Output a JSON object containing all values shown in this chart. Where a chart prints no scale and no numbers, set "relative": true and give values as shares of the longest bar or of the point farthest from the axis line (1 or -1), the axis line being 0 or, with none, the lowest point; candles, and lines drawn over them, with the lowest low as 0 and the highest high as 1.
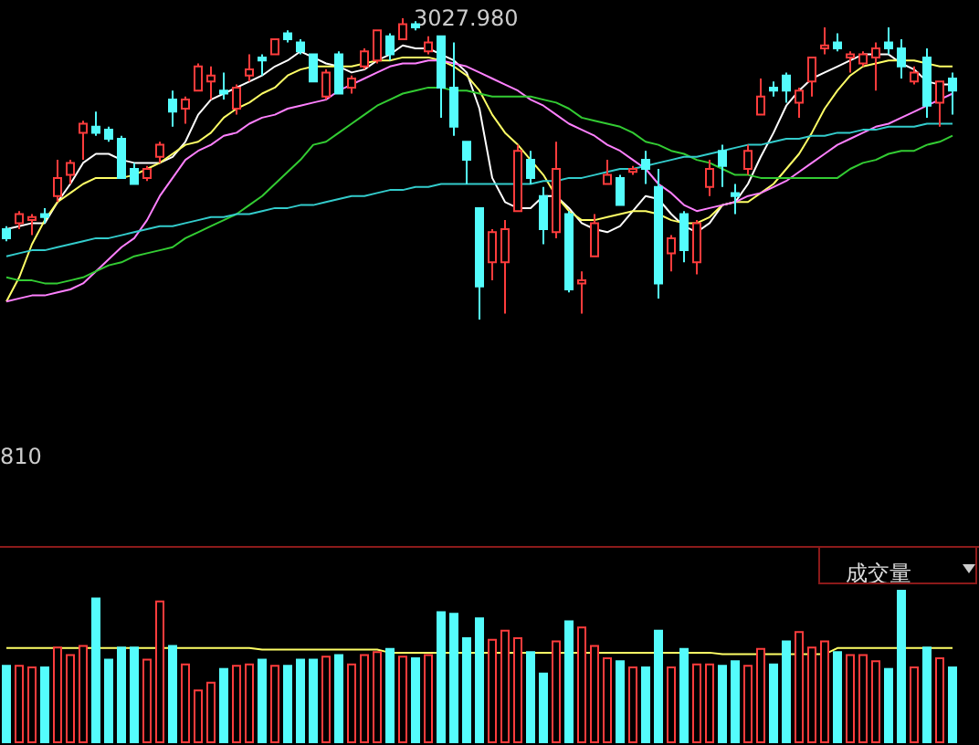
{
  "chart_data": [
    {
      "type": "candlestick",
      "relative": true,
      "annotations": [
        "3027.980",
        "810"
      ],
      "categories": [
        null,
        null,
        null,
        null,
        null,
        null,
        null,
        null,
        null,
        null,
        null,
        null,
        null,
        null,
        null,
        null,
        null,
        null,
        null,
        null,
        null,
        null,
        null,
        null,
        null,
        null,
        null,
        null,
        null,
        null,
        null,
        null,
        null,
        null,
        null,
        null,
        null,
        null,
        null,
        null,
        null,
        null,
        null,
        null,
        null,
        null,
        null,
        null,
        null,
        null,
        null,
        null,
        null,
        null,
        null,
        null,
        null,
        null,
        null,
        null,
        null,
        null,
        null,
        null,
        null,
        null,
        null,
        null,
        null,
        null,
        null,
        null,
        null,
        null,
        null
      ],
      "series": [
        {
          "type": "candlestick",
          "ohlc": [
            [
              0.3,
              0.31,
              0.26,
              0.27
            ],
            [
              0.32,
              0.36,
              0.3,
              0.35
            ],
            [
              0.33,
              0.35,
              0.28,
              0.34
            ],
            [
              0.35,
              0.37,
              0.32,
              0.34
            ],
            [
              0.41,
              0.53,
              0.39,
              0.47
            ],
            [
              0.48,
              0.53,
              0.45,
              0.52
            ],
            [
              0.62,
              0.66,
              0.53,
              0.65
            ],
            [
              0.64,
              0.69,
              0.61,
              0.62
            ],
            [
              0.63,
              0.64,
              0.59,
              0.6
            ],
            [
              0.6,
              0.61,
              0.47,
              0.47
            ],
            [
              0.5,
              0.52,
              0.45,
              0.45
            ],
            [
              0.47,
              0.51,
              0.46,
              0.5
            ],
            [
              0.54,
              0.59,
              0.52,
              0.58
            ],
            [
              0.73,
              0.76,
              0.64,
              0.69
            ],
            [
              0.7,
              0.74,
              0.65,
              0.73
            ],
            [
              0.76,
              0.85,
              0.76,
              0.84
            ],
            [
              0.79,
              0.84,
              0.73,
              0.81
            ],
            [
              0.76,
              0.82,
              0.73,
              0.75
            ],
            [
              0.7,
              0.78,
              0.68,
              0.77
            ],
            [
              0.81,
              0.88,
              0.79,
              0.83
            ],
            [
              0.87,
              0.88,
              0.81,
              0.86
            ],
            [
              0.88,
              0.93,
              0.88,
              0.93
            ],
            [
              0.95,
              0.96,
              0.92,
              0.93
            ],
            [
              0.92,
              0.93,
              0.88,
              0.89
            ],
            [
              0.88,
              0.88,
              0.79,
              0.79
            ],
            [
              0.74,
              0.83,
              0.73,
              0.82
            ],
            [
              0.88,
              0.89,
              0.75,
              0.75
            ],
            [
              0.77,
              0.81,
              0.75,
              0.8
            ],
            [
              0.84,
              0.9,
              0.83,
              0.89
            ],
            [
              0.86,
              0.96,
              0.85,
              0.96
            ],
            [
              0.94,
              0.95,
              0.86,
              0.88
            ],
            [
              0.93,
              1.0,
              0.93,
              0.98
            ],
            [
              0.98,
              0.99,
              0.96,
              0.97
            ],
            [
              0.89,
              0.94,
              0.88,
              0.92
            ],
            [
              0.94,
              0.94,
              0.67,
              0.77
            ],
            [
              0.77,
              0.92,
              0.61,
              0.64
            ],
            [
              0.59,
              0.59,
              0.45,
              0.53
            ],
            [
              0.37,
              0.37,
              0,
              0.11
            ],
            [
              0.19,
              0.3,
              0.13,
              0.29
            ],
            [
              0.19,
              0.33,
              0.02,
              0.3
            ],
            [
              0.36,
              0.58,
              0.36,
              0.56
            ],
            [
              0.53,
              0.56,
              0.45,
              0.47
            ],
            [
              0.41,
              0.44,
              0.25,
              0.3
            ],
            [
              0.29,
              0.59,
              0.27,
              0.5
            ],
            [
              0.35,
              0.36,
              0.09,
              0.1
            ],
            [
              0.12,
              0.16,
              0.02,
              0.13
            ],
            [
              0.21,
              0.35,
              0.21,
              0.32
            ],
            [
              0.45,
              0.53,
              0.45,
              0.48
            ],
            [
              0.47,
              0.48,
              0.38,
              0.38
            ],
            [
              0.49,
              0.51,
              0.48,
              0.5
            ],
            [
              0.53,
              0.56,
              0.45,
              0.5
            ],
            [
              0.44,
              0.5,
              0.07,
              0.12
            ],
            [
              0.22,
              0.28,
              0.16,
              0.27
            ],
            [
              0.35,
              0.36,
              0.19,
              0.23
            ],
            [
              0.19,
              0.33,
              0.15,
              0.32
            ],
            [
              0.44,
              0.53,
              0.41,
              0.5
            ],
            [
              0.56,
              0.58,
              0.44,
              0.51
            ],
            [
              0.42,
              0.45,
              0.35,
              0.41
            ],
            [
              0.5,
              0.58,
              0.48,
              0.56
            ],
            [
              0.68,
              0.8,
              0.68,
              0.74
            ],
            [
              0.77,
              0.79,
              0.74,
              0.76
            ],
            [
              0.81,
              0.82,
              0.72,
              0.76
            ],
            [
              0.72,
              0.77,
              0.67,
              0.76
            ],
            [
              0.79,
              0.87,
              0.74,
              0.87
            ],
            [
              0.9,
              0.97,
              0.88,
              0.91
            ],
            [
              0.92,
              0.95,
              0.89,
              0.9
            ],
            [
              0.87,
              0.89,
              0.82,
              0.88
            ],
            [
              0.85,
              0.89,
              0.84,
              0.88
            ],
            [
              0.87,
              0.92,
              0.76,
              0.9
            ],
            [
              0.92,
              0.97,
              0.88,
              0.9
            ],
            [
              0.9,
              0.93,
              0.8,
              0.84
            ],
            [
              0.79,
              0.84,
              0.78,
              0.82
            ],
            [
              0.87,
              0.9,
              0.67,
              0.71
            ],
            [
              0.72,
              0.79,
              0.64,
              0.79
            ],
            [
              0.8,
              0.82,
              0.68,
              0.76
            ]
          ],
          "colors": [
            "#54fcfc",
            "#ff3c3c",
            "#ff3c3c",
            "#54fcfc",
            "#ff3c3c",
            "#ff3c3c",
            "#ff3c3c",
            "#54fcfc",
            "#54fcfc",
            "#54fcfc",
            "#54fcfc",
            "#ff3c3c",
            "#ff3c3c",
            "#54fcfc",
            "#ff3c3c",
            "#ff3c3c",
            "#ff3c3c",
            "#54fcfc",
            "#ff3c3c",
            "#ff3c3c",
            "#54fcfc",
            "#ff3c3c",
            "#54fcfc",
            "#54fcfc",
            "#54fcfc",
            "#ff3c3c",
            "#54fcfc",
            "#ff3c3c",
            "#ff3c3c",
            "#ff3c3c",
            "#54fcfc",
            "#ff3c3c",
            "#54fcfc",
            "#ff3c3c",
            "#54fcfc",
            "#54fcfc",
            "#54fcfc",
            "#54fcfc",
            "#ff3c3c",
            "#ff3c3c",
            "#ff3c3c",
            "#54fcfc",
            "#54fcfc",
            "#ff3c3c",
            "#54fcfc",
            "#ff3c3c",
            "#ff3c3c",
            "#ff3c3c",
            "#54fcfc",
            "#ff3c3c",
            "#54fcfc",
            "#54fcfc",
            "#ff3c3c",
            "#54fcfc",
            "#ff3c3c",
            "#ff3c3c",
            "#54fcfc",
            "#54fcfc",
            "#ff3c3c",
            "#ff3c3c",
            "#54fcfc",
            "#54fcfc",
            "#ff3c3c",
            "#ff3c3c",
            "#ff3c3c",
            "#54fcfc",
            "#ff3c3c",
            "#ff3c3c",
            "#ff3c3c",
            "#54fcfc",
            "#54fcfc",
            "#ff3c3c",
            "#54fcfc",
            "#ff3c3c",
            "#54fcfc"
          ]
        },
        {
          "type": "line",
          "color": "#ffffff",
          "values": [
            0.3,
            0.31,
            0.32,
            0.32,
            0.39,
            0.45,
            0.52,
            0.55,
            0.55,
            0.53,
            0.52,
            0.52,
            0.52,
            0.54,
            0.59,
            0.68,
            0.73,
            0.75,
            0.77,
            0.79,
            0.81,
            0.84,
            0.86,
            0.89,
            0.87,
            0.85,
            0.84,
            0.82,
            0.83,
            0.86,
            0.88,
            0.91,
            0.9,
            0.9,
            0.88,
            0.86,
            0.82,
            0.7,
            0.47,
            0.39,
            0.37,
            0.37,
            0.41,
            0.41,
            0.37,
            0.32,
            0.3,
            0.29,
            0.31,
            0.36,
            0.41,
            0.4,
            0.35,
            0.31,
            0.29,
            0.32,
            0.38,
            0.39,
            0.45,
            0.54,
            0.62,
            0.71,
            0.76,
            0.8,
            0.82,
            0.84,
            0.86,
            0.88,
            0.88,
            0.88,
            0.85,
            0.83,
            0.79,
            0.78,
            0.78
          ]
        },
        {
          "type": "line",
          "color": "#ffff66",
          "values": [
            0.06,
            0.14,
            0.25,
            0.33,
            0.39,
            0.42,
            0.45,
            0.47,
            0.47,
            0.47,
            0.48,
            0.5,
            0.52,
            0.55,
            0.58,
            0.59,
            0.62,
            0.67,
            0.7,
            0.72,
            0.75,
            0.77,
            0.81,
            0.83,
            0.84,
            0.84,
            0.84,
            0.84,
            0.85,
            0.86,
            0.86,
            0.87,
            0.87,
            0.87,
            0.86,
            0.84,
            0.81,
            0.76,
            0.68,
            0.62,
            0.58,
            0.53,
            0.48,
            0.41,
            0.36,
            0.33,
            0.33,
            0.34,
            0.35,
            0.36,
            0.36,
            0.35,
            0.33,
            0.32,
            0.32,
            0.34,
            0.38,
            0.39,
            0.39,
            0.42,
            0.45,
            0.5,
            0.55,
            0.62,
            0.7,
            0.76,
            0.81,
            0.84,
            0.85,
            0.86,
            0.86,
            0.86,
            0.85,
            0.84,
            0.84
          ]
        },
        {
          "type": "line",
          "color": "#ff80ff",
          "values": [
            0.06,
            0.07,
            0.08,
            0.08,
            0.09,
            0.1,
            0.12,
            0.16,
            0.2,
            0.24,
            0.27,
            0.33,
            0.41,
            0.47,
            0.53,
            0.56,
            0.58,
            0.61,
            0.62,
            0.65,
            0.67,
            0.68,
            0.7,
            0.71,
            0.72,
            0.73,
            0.76,
            0.78,
            0.8,
            0.82,
            0.84,
            0.85,
            0.85,
            0.86,
            0.86,
            0.85,
            0.84,
            0.82,
            0.8,
            0.78,
            0.76,
            0.73,
            0.71,
            0.68,
            0.65,
            0.63,
            0.61,
            0.58,
            0.56,
            0.53,
            0.5,
            0.45,
            0.42,
            0.38,
            0.36,
            0.37,
            0.38,
            0.39,
            0.41,
            0.42,
            0.44,
            0.46,
            0.49,
            0.52,
            0.55,
            0.58,
            0.6,
            0.62,
            0.64,
            0.65,
            0.67,
            0.69,
            0.71,
            0.73,
            0.75
          ]
        },
        {
          "type": "line",
          "color": "#33cc33",
          "values": [
            0.14,
            0.13,
            0.13,
            0.12,
            0.12,
            0.13,
            0.14,
            0.16,
            0.18,
            0.19,
            0.21,
            0.22,
            0.23,
            0.24,
            0.27,
            0.29,
            0.31,
            0.33,
            0.35,
            0.38,
            0.41,
            0.45,
            0.49,
            0.53,
            0.58,
            0.59,
            0.62,
            0.65,
            0.68,
            0.71,
            0.73,
            0.75,
            0.76,
            0.77,
            0.77,
            0.76,
            0.76,
            0.75,
            0.74,
            0.74,
            0.74,
            0.74,
            0.73,
            0.72,
            0.7,
            0.67,
            0.66,
            0.65,
            0.64,
            0.62,
            0.59,
            0.58,
            0.56,
            0.55,
            0.53,
            0.52,
            0.5,
            0.48,
            0.48,
            0.47,
            0.47,
            0.47,
            0.47,
            0.47,
            0.47,
            0.47,
            0.5,
            0.52,
            0.53,
            0.55,
            0.56,
            0.56,
            0.58,
            0.59,
            0.61
          ]
        },
        {
          "type": "line",
          "color": "#33cccc",
          "values": [
            0.21,
            0.22,
            0.23,
            0.23,
            0.24,
            0.25,
            0.26,
            0.27,
            0.27,
            0.28,
            0.29,
            0.3,
            0.31,
            0.31,
            0.32,
            0.33,
            0.34,
            0.34,
            0.35,
            0.35,
            0.36,
            0.37,
            0.37,
            0.38,
            0.38,
            0.39,
            0.4,
            0.41,
            0.41,
            0.42,
            0.43,
            0.43,
            0.44,
            0.44,
            0.45,
            0.45,
            0.45,
            0.45,
            0.45,
            0.45,
            0.45,
            0.45,
            0.46,
            0.46,
            0.47,
            0.47,
            0.48,
            0.49,
            0.5,
            0.5,
            0.51,
            0.52,
            0.53,
            0.54,
            0.54,
            0.55,
            0.56,
            0.57,
            0.58,
            0.58,
            0.59,
            0.6,
            0.6,
            0.61,
            0.61,
            0.62,
            0.62,
            0.63,
            0.63,
            0.64,
            0.64,
            0.64,
            0.65,
            0.65,
            0.65
          ]
        }
      ]
    },
    {
      "type": "bar",
      "relative": true,
      "title": "成交量",
      "categories": [
        null,
        null,
        null,
        null,
        null,
        null,
        null,
        null,
        null,
        null,
        null,
        null,
        null,
        null,
        null,
        null,
        null,
        null,
        null,
        null,
        null,
        null,
        null,
        null,
        null,
        null,
        null,
        null,
        null,
        null,
        null,
        null,
        null,
        null,
        null,
        null,
        null,
        null,
        null,
        null,
        null,
        null,
        null,
        null,
        null,
        null,
        null,
        null,
        null,
        null,
        null,
        null,
        null,
        null,
        null,
        null,
        null,
        null,
        null,
        null,
        null,
        null,
        null,
        null,
        null,
        null,
        null,
        null,
        null,
        null,
        null,
        null,
        null,
        null,
        null
      ],
      "series": [
        {
          "type": "bar",
          "values": [
            0.51,
            0.51,
            0.5,
            0.5,
            0.63,
            0.58,
            0.64,
            0.95,
            0.55,
            0.63,
            0.63,
            0.55,
            0.93,
            0.64,
            0.52,
            0.35,
            0.4,
            0.49,
            0.51,
            0.52,
            0.55,
            0.51,
            0.51,
            0.55,
            0.55,
            0.57,
            0.58,
            0.52,
            0.58,
            0.6,
            0.62,
            0.57,
            0.56,
            0.58,
            0.86,
            0.85,
            0.69,
            0.82,
            0.68,
            0.74,
            0.69,
            0.6,
            0.46,
            0.67,
            0.8,
            0.76,
            0.64,
            0.56,
            0.54,
            0.5,
            0.5,
            0.74,
            0.5,
            0.62,
            0.52,
            0.52,
            0.51,
            0.54,
            0.51,
            0.62,
            0.52,
            0.67,
            0.73,
            0.63,
            0.67,
            0.6,
            0.58,
            0.58,
            0.54,
            0.49,
            1,
            0.5,
            0.63,
            0.56,
            0.5
          ],
          "colors": [
            "#54fcfc",
            "#ff3c3c",
            "#ff3c3c",
            "#54fcfc",
            "#ff3c3c",
            "#ff3c3c",
            "#ff3c3c",
            "#54fcfc",
            "#54fcfc",
            "#54fcfc",
            "#54fcfc",
            "#ff3c3c",
            "#ff3c3c",
            "#54fcfc",
            "#ff3c3c",
            "#ff3c3c",
            "#ff3c3c",
            "#54fcfc",
            "#ff3c3c",
            "#ff3c3c",
            "#54fcfc",
            "#ff3c3c",
            "#54fcfc",
            "#54fcfc",
            "#54fcfc",
            "#ff3c3c",
            "#54fcfc",
            "#ff3c3c",
            "#ff3c3c",
            "#ff3c3c",
            "#54fcfc",
            "#ff3c3c",
            "#54fcfc",
            "#ff3c3c",
            "#54fcfc",
            "#54fcfc",
            "#54fcfc",
            "#54fcfc",
            "#ff3c3c",
            "#ff3c3c",
            "#ff3c3c",
            "#54fcfc",
            "#54fcfc",
            "#ff3c3c",
            "#54fcfc",
            "#ff3c3c",
            "#ff3c3c",
            "#ff3c3c",
            "#54fcfc",
            "#ff3c3c",
            "#54fcfc",
            "#54fcfc",
            "#ff3c3c",
            "#54fcfc",
            "#ff3c3c",
            "#ff3c3c",
            "#54fcfc",
            "#54fcfc",
            "#ff3c3c",
            "#ff3c3c",
            "#54fcfc",
            "#54fcfc",
            "#ff3c3c",
            "#ff3c3c",
            "#ff3c3c",
            "#54fcfc",
            "#ff3c3c",
            "#ff3c3c",
            "#ff3c3c",
            "#54fcfc",
            "#54fcfc",
            "#ff3c3c",
            "#54fcfc",
            "#ff3c3c",
            "#54fcfc"
          ]
        },
        {
          "type": "line",
          "color": "#ffff66",
          "values": [
            0.62,
            0.62,
            0.62,
            0.62,
            0.62,
            0.62,
            0.62,
            0.62,
            0.62,
            0.62,
            0.62,
            0.62,
            0.62,
            0.62,
            0.62,
            0.62,
            0.62,
            0.62,
            0.62,
            0.62,
            0.61,
            0.61,
            0.61,
            0.61,
            0.61,
            0.61,
            0.61,
            0.61,
            0.61,
            0.61,
            0.59,
            0.59,
            0.59,
            0.59,
            0.59,
            0.59,
            0.59,
            0.59,
            0.59,
            0.59,
            0.59,
            0.59,
            0.59,
            0.59,
            0.59,
            0.59,
            0.59,
            0.59,
            0.59,
            0.59,
            0.59,
            0.59,
            0.59,
            0.59,
            0.59,
            0.59,
            0.58,
            0.58,
            0.58,
            0.58,
            0.58,
            0.58,
            0.58,
            0.58,
            0.58,
            0.62,
            0.62,
            0.62,
            0.62,
            0.62,
            0.62,
            0.62,
            0.62,
            0.62,
            0.62
          ]
        }
      ]
    }
  ]
}
